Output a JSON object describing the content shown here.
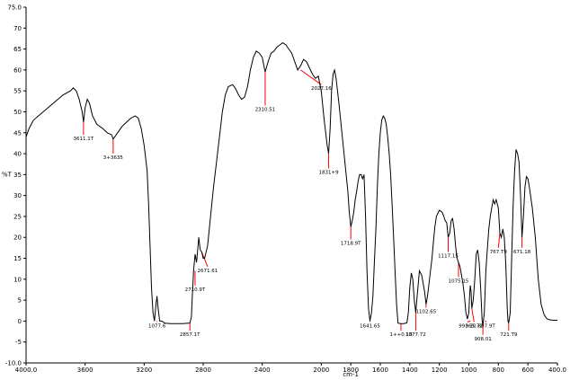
{
  "chart_data": {
    "type": "line",
    "title": "",
    "xlabel": "cm-1",
    "ylabel": "%T",
    "xlim": [
      4000,
      400
    ],
    "ylim": [
      -10,
      75
    ],
    "x_reversed": true,
    "grid": false,
    "legend": "none",
    "colors": {
      "line": "#000000",
      "annotation": "#ff0000",
      "axis": "#000000"
    },
    "x_ticks": [
      {
        "value": 4000,
        "label": "4000.0"
      },
      {
        "value": 3600,
        "label": "3600"
      },
      {
        "value": 3200,
        "label": "3200"
      },
      {
        "value": 2800,
        "label": "2800"
      },
      {
        "value": 2400,
        "label": "2400"
      },
      {
        "value": 2000,
        "label": "2000"
      },
      {
        "value": 1800,
        "label": "1800"
      },
      {
        "value": 1600,
        "label": "1600"
      },
      {
        "value": 1400,
        "label": "1400"
      },
      {
        "value": 1200,
        "label": "1200"
      },
      {
        "value": 1000,
        "label": "1000"
      },
      {
        "value": 800,
        "label": "800"
      },
      {
        "value": 600,
        "label": "600"
      },
      {
        "value": 400,
        "label": "400.0"
      }
    ],
    "y_ticks": [
      {
        "value": 75,
        "label": "75.0"
      },
      {
        "value": 70,
        "label": "70"
      },
      {
        "value": 65,
        "label": "65"
      },
      {
        "value": 60,
        "label": "60"
      },
      {
        "value": 55,
        "label": "55"
      },
      {
        "value": 50,
        "label": "50"
      },
      {
        "value": 45,
        "label": "45"
      },
      {
        "value": 40,
        "label": "40"
      },
      {
        "value": 35,
        "label": "35"
      },
      {
        "value": 30,
        "label": "30"
      },
      {
        "value": 25,
        "label": "25"
      },
      {
        "value": 20,
        "label": "20"
      },
      {
        "value": 15,
        "label": "15"
      },
      {
        "value": 10,
        "label": "10"
      },
      {
        "value": 5,
        "label": "5"
      },
      {
        "value": 0,
        "label": "0"
      },
      {
        "value": -5,
        "label": "-5"
      },
      {
        "value": -10,
        "label": "-10.0"
      }
    ],
    "series": [
      {
        "points": [
          [
            4000,
            44
          ],
          [
            3980,
            46
          ],
          [
            3950,
            48
          ],
          [
            3900,
            49.5
          ],
          [
            3850,
            51
          ],
          [
            3800,
            52.5
          ],
          [
            3750,
            54
          ],
          [
            3700,
            55
          ],
          [
            3680,
            55.7
          ],
          [
            3660,
            55
          ],
          [
            3640,
            53
          ],
          [
            3620,
            50
          ],
          [
            3611,
            47.5
          ],
          [
            3600,
            51
          ],
          [
            3585,
            53
          ],
          [
            3570,
            52
          ],
          [
            3550,
            49
          ],
          [
            3520,
            47
          ],
          [
            3480,
            46
          ],
          [
            3450,
            45
          ],
          [
            3420,
            44.5
          ],
          [
            3410,
            43.5
          ],
          [
            3380,
            45
          ],
          [
            3350,
            46.5
          ],
          [
            3320,
            47.5
          ],
          [
            3290,
            48.5
          ],
          [
            3260,
            49
          ],
          [
            3240,
            48.5
          ],
          [
            3220,
            46
          ],
          [
            3200,
            42
          ],
          [
            3180,
            36
          ],
          [
            3170,
            28
          ],
          [
            3160,
            18
          ],
          [
            3150,
            8
          ],
          [
            3140,
            2
          ],
          [
            3130,
            0
          ],
          [
            3120,
            4
          ],
          [
            3113,
            6
          ],
          [
            3105,
            3
          ],
          [
            3095,
            0
          ],
          [
            3080,
            0
          ],
          [
            3060,
            -0.5
          ],
          [
            3020,
            -0.6
          ],
          [
            2980,
            -0.6
          ],
          [
            2940,
            -0.6
          ],
          [
            2900,
            -0.5
          ],
          [
            2890,
            -0.5
          ],
          [
            2880,
            1
          ],
          [
            2875,
            5
          ],
          [
            2865,
            12
          ],
          [
            2855,
            16
          ],
          [
            2845,
            14
          ],
          [
            2835,
            18
          ],
          [
            2830,
            20
          ],
          [
            2820,
            17
          ],
          [
            2810,
            16.5
          ],
          [
            2800,
            15
          ],
          [
            2790,
            15
          ],
          [
            2770,
            18
          ],
          [
            2750,
            25
          ],
          [
            2730,
            32
          ],
          [
            2710,
            38
          ],
          [
            2690,
            44
          ],
          [
            2670,
            50
          ],
          [
            2650,
            54
          ],
          [
            2630,
            56
          ],
          [
            2600,
            56.5
          ],
          [
            2580,
            55.5
          ],
          [
            2560,
            54
          ],
          [
            2540,
            53
          ],
          [
            2520,
            53.5
          ],
          [
            2500,
            56
          ],
          [
            2480,
            60
          ],
          [
            2460,
            63
          ],
          [
            2440,
            64.5
          ],
          [
            2420,
            64
          ],
          [
            2400,
            63
          ],
          [
            2380,
            59.5
          ],
          [
            2360,
            62
          ],
          [
            2340,
            64
          ],
          [
            2320,
            64.5
          ],
          [
            2300,
            65.5
          ],
          [
            2280,
            66
          ],
          [
            2260,
            66.5
          ],
          [
            2240,
            66
          ],
          [
            2220,
            65
          ],
          [
            2200,
            64
          ],
          [
            2180,
            62
          ],
          [
            2160,
            60
          ],
          [
            2140,
            61
          ],
          [
            2120,
            62.5
          ],
          [
            2100,
            62
          ],
          [
            2080,
            60.5
          ],
          [
            2060,
            59
          ],
          [
            2040,
            58
          ],
          [
            2020,
            58.5
          ],
          [
            2000,
            55
          ],
          [
            1980,
            48
          ],
          [
            1960,
            42
          ],
          [
            1950,
            40
          ],
          [
            1940,
            46
          ],
          [
            1930,
            55
          ],
          [
            1920,
            59
          ],
          [
            1910,
            60
          ],
          [
            1900,
            58
          ],
          [
            1880,
            52
          ],
          [
            1860,
            45
          ],
          [
            1840,
            38
          ],
          [
            1820,
            31
          ],
          [
            1810,
            26
          ],
          [
            1800,
            22.5
          ],
          [
            1790,
            24
          ],
          [
            1780,
            26
          ],
          [
            1770,
            29
          ],
          [
            1760,
            31
          ],
          [
            1750,
            33.5
          ],
          [
            1740,
            35
          ],
          [
            1730,
            35
          ],
          [
            1720,
            34
          ],
          [
            1710,
            35
          ],
          [
            1700,
            25
          ],
          [
            1690,
            12
          ],
          [
            1680,
            3
          ],
          [
            1670,
            0
          ],
          [
            1660,
            2
          ],
          [
            1650,
            6
          ],
          [
            1640,
            14
          ],
          [
            1630,
            22
          ],
          [
            1620,
            32
          ],
          [
            1610,
            40
          ],
          [
            1600,
            45
          ],
          [
            1590,
            48
          ],
          [
            1580,
            49
          ],
          [
            1570,
            48.5
          ],
          [
            1560,
            47
          ],
          [
            1550,
            44
          ],
          [
            1540,
            40
          ],
          [
            1530,
            35
          ],
          [
            1520,
            28
          ],
          [
            1510,
            20
          ],
          [
            1500,
            12
          ],
          [
            1490,
            4
          ],
          [
            1480,
            -0.5
          ],
          [
            1460,
            -0.6
          ],
          [
            1440,
            -0.6
          ],
          [
            1420,
            -0.4
          ],
          [
            1410,
            2
          ],
          [
            1400,
            8
          ],
          [
            1390,
            11.5
          ],
          [
            1380,
            10
          ],
          [
            1370,
            5
          ],
          [
            1360,
            2
          ],
          [
            1350,
            6
          ],
          [
            1340,
            10
          ],
          [
            1335,
            12
          ],
          [
            1320,
            11
          ],
          [
            1300,
            7
          ],
          [
            1290,
            4
          ],
          [
            1280,
            6
          ],
          [
            1270,
            9
          ],
          [
            1260,
            12
          ],
          [
            1250,
            15
          ],
          [
            1240,
            19
          ],
          [
            1230,
            22.5
          ],
          [
            1220,
            25
          ],
          [
            1200,
            26.5
          ],
          [
            1180,
            26
          ],
          [
            1170,
            25
          ],
          [
            1160,
            24
          ],
          [
            1150,
            23.5
          ],
          [
            1140,
            20
          ],
          [
            1130,
            21
          ],
          [
            1120,
            24
          ],
          [
            1110,
            24.5
          ],
          [
            1100,
            22
          ],
          [
            1090,
            18
          ],
          [
            1080,
            15
          ],
          [
            1070,
            14
          ],
          [
            1060,
            13
          ],
          [
            1050,
            11
          ],
          [
            1040,
            9
          ],
          [
            1030,
            6
          ],
          [
            1020,
            2
          ],
          [
            1010,
            0.5
          ],
          [
            1000,
            2
          ],
          [
            995,
            6
          ],
          [
            990,
            8.5
          ],
          [
            985,
            7
          ],
          [
            980,
            3
          ],
          [
            970,
            5
          ],
          [
            960,
            10
          ],
          [
            950,
            16
          ],
          [
            940,
            17
          ],
          [
            930,
            14
          ],
          [
            920,
            8
          ],
          [
            910,
            0
          ],
          [
            905,
            -1
          ],
          [
            895,
            2
          ],
          [
            885,
            12
          ],
          [
            875,
            17
          ],
          [
            865,
            22
          ],
          [
            855,
            25
          ],
          [
            845,
            27
          ],
          [
            835,
            29
          ],
          [
            825,
            28
          ],
          [
            815,
            29
          ],
          [
            800,
            27
          ],
          [
            790,
            21
          ],
          [
            780,
            20
          ],
          [
            770,
            22
          ],
          [
            760,
            20
          ],
          [
            750,
            14
          ],
          [
            740,
            3
          ],
          [
            735,
            0
          ],
          [
            730,
            -0.5
          ],
          [
            720,
            2
          ],
          [
            710,
            15
          ],
          [
            700,
            28
          ],
          [
            690,
            36
          ],
          [
            680,
            41
          ],
          [
            670,
            40
          ],
          [
            660,
            38
          ],
          [
            650,
            30
          ],
          [
            640,
            20
          ],
          [
            630,
            25
          ],
          [
            620,
            32
          ],
          [
            610,
            34.5
          ],
          [
            600,
            34
          ],
          [
            590,
            32
          ],
          [
            570,
            27
          ],
          [
            550,
            20
          ],
          [
            530,
            10
          ],
          [
            510,
            4
          ],
          [
            490,
            1.5
          ],
          [
            470,
            0.5
          ],
          [
            450,
            0.3
          ],
          [
            430,
            0.2
          ],
          [
            410,
            0.2
          ],
          [
            400,
            0.2
          ]
        ]
      }
    ],
    "annotations": [
      {
        "x": 3611,
        "y": 47.5,
        "label": "3611.1T",
        "lx": 3611,
        "ly": 44.5
      },
      {
        "x": 3410,
        "y": 43.5,
        "label": "3+3635",
        "lx": 3410,
        "ly": 40
      },
      {
        "x": 2140,
        "y": 60,
        "label": "2027.16",
        "lx": 2000,
        "ly": 56.5
      },
      {
        "x": 2380,
        "y": 59.5,
        "label": "2310.51",
        "lx": 2380,
        "ly": 51.5
      },
      {
        "x": 1950,
        "y": 40,
        "label": "1831+9",
        "lx": 1950,
        "ly": 36.5
      },
      {
        "x": 1800,
        "y": 22.5,
        "label": "1718.9T",
        "lx": 1800,
        "ly": 19.5
      },
      {
        "x": 2810,
        "y": 16.5,
        "label": "2671.61",
        "lx": 2770,
        "ly": 13
      },
      {
        "x": 2855,
        "y": 12,
        "label": "2710.9T",
        "lx": 2855,
        "ly": 8.5
      },
      {
        "x": 3113,
        "y": 0,
        "label": "1077.6",
        "lx": 3113,
        "ly": -0.2
      },
      {
        "x": 2890,
        "y": -0.6,
        "label": "2857.1T",
        "lx": 2890,
        "ly": -2.3
      },
      {
        "x": 1670,
        "y": 0,
        "label": "1641.65",
        "lx": 1670,
        "ly": -0.2
      },
      {
        "x": 1460,
        "y": -0.6,
        "label": "1++0.10",
        "lx": 1460,
        "ly": -2.3
      },
      {
        "x": 1360,
        "y": 2,
        "label": "1377.72",
        "lx": 1360,
        "ly": -2.3
      },
      {
        "x": 1290,
        "y": 4,
        "label": "1102.65",
        "lx": 1290,
        "ly": 3.2
      },
      {
        "x": 1140,
        "y": 20,
        "label": "1117.15",
        "lx": 1140,
        "ly": 16.5
      },
      {
        "x": 1070,
        "y": 14,
        "label": "1075.15",
        "lx": 1070,
        "ly": 10.5
      },
      {
        "x": 990,
        "y": 0,
        "label": "992.10",
        "lx": 1010,
        "ly": -0.2
      },
      {
        "x": 980,
        "y": 3,
        "label": "965.72",
        "lx": 965,
        "ly": -0.2
      },
      {
        "x": 905,
        "y": -1,
        "label": "908.01",
        "lx": 905,
        "ly": -3.3
      },
      {
        "x": 890,
        "y": 0,
        "label": "887.9T",
        "lx": 880,
        "ly": -0.2
      },
      {
        "x": 730,
        "y": -0.5,
        "label": "721.T9",
        "lx": 730,
        "ly": -2.3
      },
      {
        "x": 790,
        "y": 21,
        "label": "767.T9",
        "lx": 800,
        "ly": 17.5
      },
      {
        "x": 640,
        "y": 20,
        "label": "671.18",
        "lx": 640,
        "ly": 17.5
      }
    ]
  }
}
